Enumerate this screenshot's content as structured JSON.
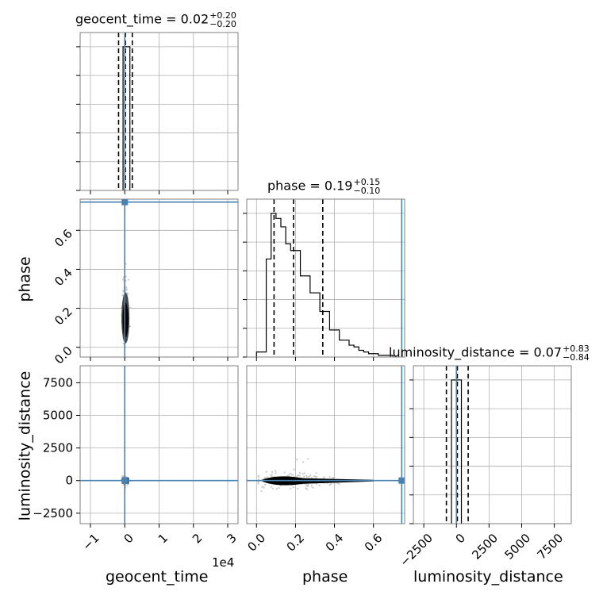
{
  "chart_data": {
    "type": "corner",
    "parameters": [
      "geocent_time",
      "phase",
      "luminosity_distance"
    ],
    "axis_labels": {
      "geocent_time": "geocent_time",
      "phase": "phase",
      "luminosity_distance": "luminosity_distance"
    },
    "titles": {
      "geocent_time": {
        "name": "geocent_time",
        "value": "0.02",
        "plus": "+0.20",
        "minus": "−0.20"
      },
      "phase": {
        "name": "phase",
        "value": "0.19",
        "plus": "+0.15",
        "minus": "−0.10"
      },
      "luminosity_distance": {
        "name": "luminosity_distance",
        "value": "0.07",
        "plus": "+0.83",
        "minus": "−0.84"
      }
    },
    "offset_text": {
      "geocent_time": "1e4"
    },
    "ranges": {
      "geocent_time": [
        -1.3,
        3.3
      ],
      "phase": [
        -0.05,
        0.76
      ],
      "luminosity_distance": [
        -3300,
        8800
      ]
    },
    "ticks": {
      "geocent_time": [
        -1,
        0,
        1,
        2,
        3
      ],
      "phase": [
        0.0,
        0.2,
        0.4,
        0.6
      ],
      "luminosity_distance": [
        -2500,
        0,
        2500,
        5000,
        7500
      ]
    },
    "tick_labels": {
      "geocent_time": [
        "−1",
        "0",
        "1",
        "2",
        "3"
      ],
      "phase": [
        "0.0",
        "0.2",
        "0.4",
        "0.6"
      ],
      "luminosity_distance": [
        "−2500",
        "0",
        "2500",
        "5000",
        "7500"
      ]
    },
    "truths": {
      "geocent_time": 0.0,
      "phase": 0.745,
      "luminosity_distance": 0.0
    },
    "quantiles": {
      "geocent_time": [
        -0.18,
        0.02,
        0.22
      ],
      "phase": [
        0.09,
        0.19,
        0.34
      ],
      "luminosity_distance": [
        -770,
        70,
        900
      ]
    },
    "histograms": {
      "geocent_time": {
        "bin_edges": [
          -0.05,
          0.15
        ],
        "counts": [
          1.0
        ]
      },
      "phase": {
        "bin_edges": [
          0.0,
          0.025,
          0.05,
          0.075,
          0.1,
          0.125,
          0.15,
          0.175,
          0.2,
          0.225,
          0.25,
          0.275,
          0.3,
          0.325,
          0.35,
          0.375,
          0.4,
          0.425,
          0.45,
          0.475,
          0.5,
          0.525,
          0.55,
          0.575,
          0.6,
          0.625,
          0.65,
          0.675,
          0.7
        ],
        "counts": [
          0.03,
          0.03,
          0.58,
          0.85,
          0.82,
          0.77,
          0.67,
          0.63,
          0.63,
          0.48,
          0.48,
          0.38,
          0.38,
          0.27,
          0.27,
          0.16,
          0.16,
          0.1,
          0.1,
          0.07,
          0.06,
          0.04,
          0.03,
          0.02,
          0.02,
          0.01,
          0.01,
          0.01
        ]
      },
      "luminosity_distance": {
        "bin_edges": [
          -380,
          380
        ],
        "counts": [
          1.0
        ]
      }
    },
    "grid": true
  }
}
